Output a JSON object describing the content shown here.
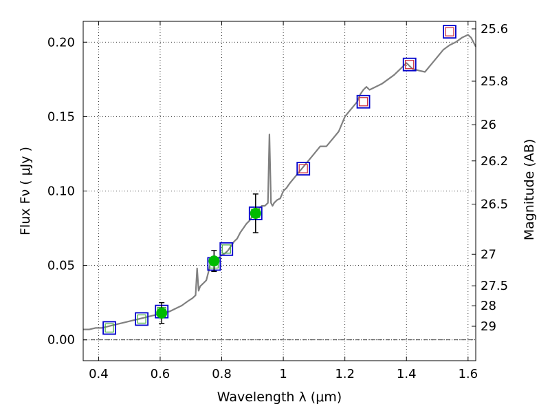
{
  "chart_data": {
    "type": "line",
    "title": "",
    "xlabel": "Wavelength  λ (μm)",
    "ylabel": "Flux  Fν  ( μJy )",
    "y2label": "Magnitude (AB)",
    "xlim": [
      0.35,
      1.625
    ],
    "ylim": [
      -0.014,
      0.214
    ],
    "grid": true,
    "x_ticks": [
      0.4,
      0.6,
      0.8,
      1.0,
      1.2,
      1.4,
      1.6
    ],
    "x_tick_labels": [
      "0.4",
      "0.6",
      "0.8",
      "1",
      "1.2",
      "1.4",
      "1.6"
    ],
    "y_ticks": [
      0.0,
      0.05,
      0.1,
      0.15,
      0.2
    ],
    "y_tick_labels": [
      "0.00",
      "0.05",
      "0.10",
      "0.15",
      "0.20"
    ],
    "y2_ticks": [
      {
        "label": "25.6",
        "mag": 25.6
      },
      {
        "label": "25.8",
        "mag": 25.8
      },
      {
        "label": "26",
        "mag": 26.0
      },
      {
        "label": "26.2",
        "mag": 26.2
      },
      {
        "label": "26.5",
        "mag": 26.5
      },
      {
        "label": "27",
        "mag": 27.0
      },
      {
        "label": "27.5",
        "mag": 27.5
      },
      {
        "label": "28",
        "mag": 28.0
      },
      {
        "label": "29",
        "mag": 29.0
      }
    ],
    "colors": {
      "spectrum": "#808080",
      "blue_square": "#0000cc",
      "green_square": "#44aa44",
      "red_square": "#cc3344",
      "green_point": "#00bb00",
      "errorbar": "#000000",
      "zero_line": "#000000"
    },
    "series": [
      {
        "name": "model spectrum",
        "kind": "line",
        "x": [
          0.35,
          0.37,
          0.39,
          0.41,
          0.43,
          0.45,
          0.47,
          0.49,
          0.51,
          0.53,
          0.55,
          0.57,
          0.59,
          0.61,
          0.63,
          0.65,
          0.67,
          0.69,
          0.705,
          0.715,
          0.72,
          0.725,
          0.73,
          0.74,
          0.75,
          0.76,
          0.765,
          0.77,
          0.78,
          0.79,
          0.8,
          0.81,
          0.82,
          0.83,
          0.84,
          0.85,
          0.86,
          0.87,
          0.88,
          0.89,
          0.9,
          0.91,
          0.92,
          0.93,
          0.94,
          0.95,
          0.955,
          0.96,
          0.965,
          0.97,
          0.98,
          0.99,
          1.0,
          1.01,
          1.02,
          1.04,
          1.06,
          1.08,
          1.1,
          1.12,
          1.14,
          1.16,
          1.18,
          1.2,
          1.22,
          1.24,
          1.25,
          1.26,
          1.27,
          1.28,
          1.3,
          1.32,
          1.34,
          1.36,
          1.38,
          1.4,
          1.42,
          1.44,
          1.46,
          1.48,
          1.5,
          1.52,
          1.54,
          1.56,
          1.58,
          1.6,
          1.61,
          1.625
        ],
        "y": [
          0.007,
          0.007,
          0.008,
          0.008,
          0.009,
          0.01,
          0.011,
          0.012,
          0.013,
          0.014,
          0.015,
          0.016,
          0.017,
          0.018,
          0.019,
          0.021,
          0.023,
          0.026,
          0.028,
          0.03,
          0.048,
          0.033,
          0.036,
          0.038,
          0.04,
          0.048,
          0.055,
          0.05,
          0.052,
          0.055,
          0.057,
          0.058,
          0.06,
          0.063,
          0.066,
          0.068,
          0.072,
          0.075,
          0.078,
          0.08,
          0.083,
          0.085,
          0.088,
          0.09,
          0.09,
          0.092,
          0.138,
          0.092,
          0.09,
          0.092,
          0.094,
          0.095,
          0.1,
          0.102,
          0.105,
          0.11,
          0.115,
          0.12,
          0.125,
          0.13,
          0.13,
          0.135,
          0.14,
          0.15,
          0.155,
          0.16,
          0.165,
          0.168,
          0.17,
          0.168,
          0.17,
          0.172,
          0.175,
          0.178,
          0.182,
          0.186,
          0.182,
          0.181,
          0.18,
          0.185,
          0.19,
          0.195,
          0.198,
          0.2,
          0.203,
          0.205,
          0.203,
          0.197
        ]
      },
      {
        "name": "blue squares",
        "kind": "marker",
        "x": [
          0.435,
          0.54,
          0.605,
          0.775,
          0.815,
          0.91,
          1.065,
          1.26,
          1.41,
          1.54
        ],
        "y": [
          0.008,
          0.014,
          0.019,
          0.051,
          0.061,
          0.085,
          0.115,
          0.16,
          0.185,
          0.207
        ]
      },
      {
        "name": "green squares",
        "kind": "marker",
        "x": [
          0.435,
          0.54,
          0.605,
          0.775,
          0.815,
          0.91
        ],
        "y": [
          0.008,
          0.014,
          0.019,
          0.051,
          0.061,
          0.085
        ]
      },
      {
        "name": "red squares",
        "kind": "marker",
        "x": [
          1.065,
          1.26,
          1.41,
          1.54
        ],
        "y": [
          0.115,
          0.16,
          0.185,
          0.207
        ]
      },
      {
        "name": "observed photometry",
        "kind": "errorbar",
        "x": [
          0.605,
          0.775,
          0.91
        ],
        "y": [
          0.018,
          0.053,
          0.085
        ],
        "yerr": [
          0.007,
          0.007,
          0.013
        ]
      }
    ]
  }
}
